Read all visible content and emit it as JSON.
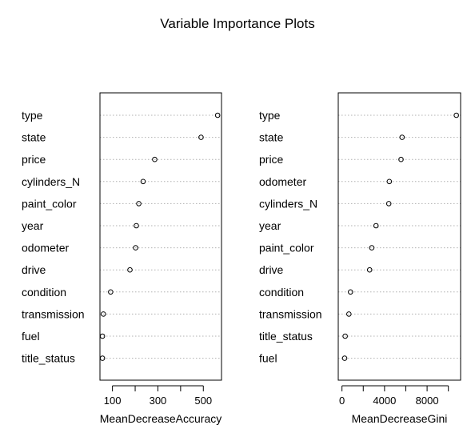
{
  "title": "Variable Importance Plots",
  "colors": {
    "point": "#000000",
    "guide": "#b0b0b0",
    "frame": "#000000",
    "background": "#ffffff"
  },
  "chart_data": [
    {
      "type": "scatter",
      "variant": "dotchart",
      "xlabel": "MeanDecreaseAccuracy",
      "xlim": [
        45,
        580
      ],
      "ticks": [
        100,
        200,
        300,
        400,
        500
      ],
      "tick_labels": [
        "100",
        "",
        "300",
        "",
        "500"
      ],
      "grid": false,
      "guide_lines": "dotted",
      "categories": [
        "type",
        "state",
        "price",
        "cylinders_N",
        "paint_color",
        "year",
        "odometer",
        "drive",
        "condition",
        "transmission",
        "fuel",
        "title_status"
      ],
      "values": [
        563,
        490,
        286,
        235,
        216,
        205,
        202,
        177,
        92,
        60,
        56,
        56
      ]
    },
    {
      "type": "scatter",
      "variant": "dotchart",
      "xlabel": "MeanDecreaseGini",
      "xlim": [
        -350,
        11150
      ],
      "ticks": [
        0,
        2000,
        4000,
        6000,
        8000,
        10000
      ],
      "tick_labels": [
        "0",
        "",
        "4000",
        "",
        "8000",
        ""
      ],
      "grid": false,
      "guide_lines": "dotted",
      "categories": [
        "type",
        "state",
        "price",
        "odometer",
        "cylinders_N",
        "year",
        "paint_color",
        "drive",
        "condition",
        "transmission",
        "title_status",
        "fuel"
      ],
      "values": [
        10750,
        5650,
        5550,
        4450,
        4400,
        3200,
        2800,
        2600,
        800,
        650,
        300,
        250
      ]
    }
  ]
}
